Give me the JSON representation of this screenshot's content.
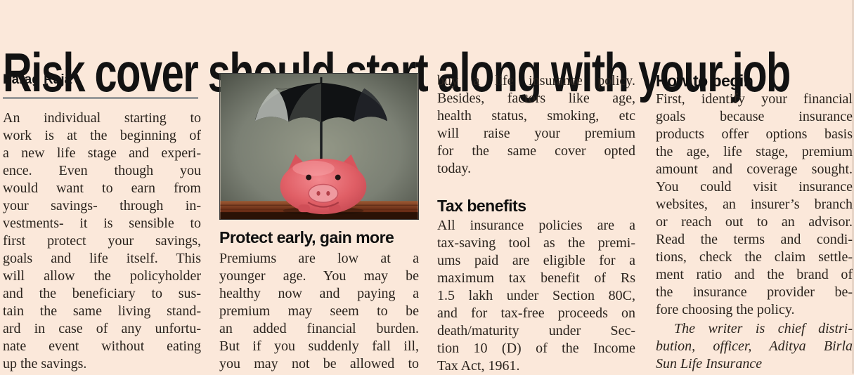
{
  "article": {
    "title": "Risk cover should start along with your job",
    "byline": "Parag Raja"
  },
  "photo": {
    "description": "Pink piggy bank sheltered under a black umbrella on a wooden table"
  },
  "columns": {
    "col1": {
      "lines": [
        "An individual starting to",
        "work is at the beginning of",
        "a new life stage and experi-",
        "ence. Even though you",
        "would want to earn from",
        "your savings- through in-",
        "vestments- it is sensible to",
        "first protect your savings,",
        "goals and life itself. This",
        "will allow the policyholder",
        "and the beneficiary to sus-",
        "tain the same living stand-",
        "ard in case of any unfortu-",
        "nate event without eating",
        "up the savings."
      ]
    },
    "col2": {
      "heading": "Protect early, gain more",
      "lines": [
        "Premiums are low at a",
        "younger age. You may be",
        "healthy now and paying a",
        "premium may seem to be",
        "an added financial burden.",
        "But if you suddenly fall ill,",
        "you may not be allowed to"
      ]
    },
    "col3": {
      "para1_lines": [
        "buy a life insurance policy.",
        "Besides, factors like age,",
        "health status, smoking, etc",
        "will raise your premium",
        "for the same cover opted",
        "today."
      ],
      "heading": "Tax benefits",
      "para2_lines": [
        "All insurance policies are a",
        "tax-saving tool as the premi-",
        "ums paid are eligible for a",
        "maximum tax benefit of Rs",
        "1.5 lakh under Section 80C,",
        "and for tax-free proceeds on",
        "death/maturity under Sec-",
        "tion 10 (D) of the Income",
        "Tax Act, 1961."
      ]
    },
    "col4": {
      "heading": "How to begin",
      "para_lines": [
        "First, identify your financial",
        "goals because insurance",
        "products offer options basis",
        "the age, life stage, premium",
        "amount and coverage sought.",
        "You could visit insurance",
        "websites, an insurer’s branch",
        "or reach out to an advisor.",
        "Read the terms and condi-",
        "tions, check the claim settle-",
        "ment ratio and the brand of",
        "the insurance provider be-",
        "fore choosing the policy."
      ],
      "signature_lines": [
        "The writer is chief distri-",
        "bution, officer, Aditya Birla",
        "Sun Life Insurance"
      ]
    }
  },
  "colors": {
    "page_background": "#fbe8da",
    "body_text": "#2b241e",
    "headline_text": "#121212",
    "byline_rule": "#9a9a9a",
    "pig_pink": "#e05f66",
    "umbrella_black": "#101214",
    "table_wood": "#6e3119"
  }
}
